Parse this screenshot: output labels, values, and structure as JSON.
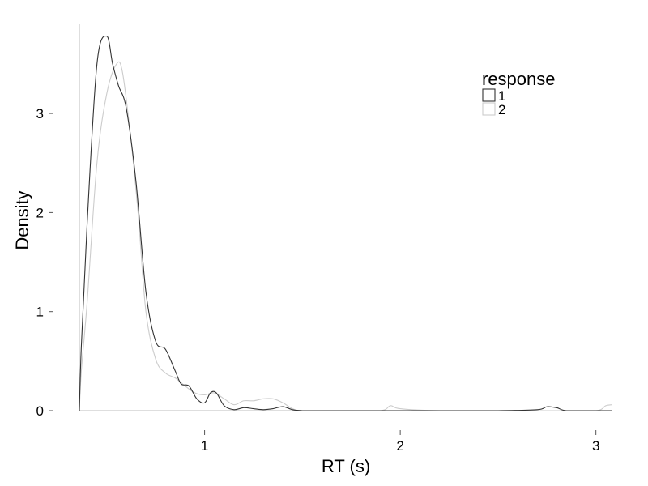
{
  "chart_data": {
    "type": "line",
    "title": "",
    "xlabel": "RT (s)",
    "ylabel": "Density",
    "xlim": [
      0.36,
      3.08
    ],
    "ylim": [
      0,
      3.9
    ],
    "x_ticks": [
      1,
      2,
      3
    ],
    "x_tick_labels": [
      "1",
      "2",
      "3"
    ],
    "y_ticks": [
      0,
      1,
      2,
      3
    ],
    "y_tick_labels": [
      "0",
      "1",
      "2",
      "3"
    ],
    "grid": false,
    "legend": {
      "title": "response",
      "placement": "top-right",
      "entries": [
        "1",
        "2"
      ]
    },
    "series": [
      {
        "name": "1",
        "color": "#333333",
        "x": [
          0.36,
          0.37,
          0.4,
          0.45,
          0.5,
          0.53,
          0.56,
          0.6,
          0.65,
          0.7,
          0.75,
          0.8,
          0.85,
          0.88,
          0.92,
          0.96,
          1.0,
          1.03,
          1.06,
          1.1,
          1.15,
          1.2,
          1.25,
          1.3,
          1.35,
          1.4,
          1.45,
          1.5,
          1.6,
          1.8,
          2.0,
          2.2,
          2.5,
          2.7,
          2.75,
          2.8,
          2.85,
          3.0,
          3.08
        ],
        "y": [
          0.0,
          0.65,
          1.9,
          3.5,
          3.78,
          3.5,
          3.28,
          3.05,
          2.3,
          1.2,
          0.7,
          0.62,
          0.4,
          0.27,
          0.25,
          0.12,
          0.08,
          0.18,
          0.18,
          0.05,
          0.01,
          0.03,
          0.02,
          0.01,
          0.02,
          0.04,
          0.01,
          0.0,
          0.0,
          0.0,
          0.0,
          0.0,
          0.0,
          0.01,
          0.04,
          0.03,
          0.0,
          0.0,
          0.0
        ]
      },
      {
        "name": "2",
        "color": "#cccccc",
        "x": [
          0.36,
          0.37,
          0.4,
          0.45,
          0.5,
          0.55,
          0.58,
          0.62,
          0.66,
          0.7,
          0.75,
          0.8,
          0.85,
          0.9,
          0.95,
          1.0,
          1.05,
          1.1,
          1.15,
          1.2,
          1.25,
          1.3,
          1.35,
          1.4,
          1.45,
          1.5,
          1.7,
          1.9,
          1.95,
          2.0,
          2.2,
          2.8,
          3.0,
          3.05,
          3.08
        ],
        "y": [
          0.0,
          0.4,
          1.1,
          2.5,
          3.2,
          3.5,
          3.42,
          2.8,
          2.0,
          1.0,
          0.52,
          0.38,
          0.33,
          0.25,
          0.18,
          0.16,
          0.18,
          0.12,
          0.06,
          0.1,
          0.1,
          0.12,
          0.12,
          0.08,
          0.02,
          0.0,
          0.0,
          0.0,
          0.05,
          0.02,
          0.0,
          0.0,
          0.0,
          0.05,
          0.06
        ]
      }
    ]
  }
}
